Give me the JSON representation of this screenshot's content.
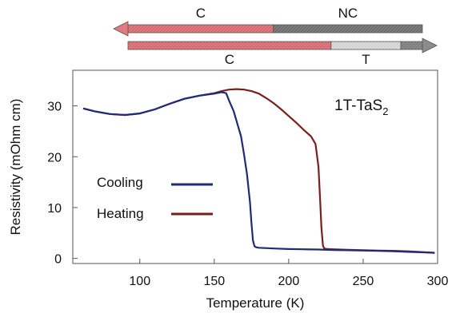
{
  "chart_data": {
    "type": "line",
    "title": "1T-TaS",
    "title_subscript": "2",
    "xlabel": "Temperature (K)",
    "ylabel": "Resistivity (mOhm cm)",
    "xlim": [
      55,
      300
    ],
    "ylim": [
      -1,
      37
    ],
    "xticks": [
      100,
      150,
      200,
      250,
      300
    ],
    "yticks": [
      0,
      10,
      20,
      30
    ],
    "grid": false,
    "legend_position": "left",
    "series": [
      {
        "name": "Cooling",
        "color": "#1f2a78",
        "x": [
          62,
          70,
          80,
          90,
          100,
          110,
          120,
          130,
          140,
          150,
          155,
          158,
          160,
          163,
          166,
          168,
          170,
          172,
          174,
          175,
          176,
          177,
          178,
          180,
          190,
          200,
          210,
          220,
          230,
          240,
          250,
          260,
          270,
          280,
          290,
          298
        ],
        "y": [
          29.5,
          28.9,
          28.4,
          28.2,
          28.5,
          29.3,
          30.4,
          31.4,
          32.0,
          32.4,
          32.7,
          32.5,
          31.0,
          29.0,
          26.0,
          24.0,
          20.5,
          16.5,
          11.0,
          7.0,
          3.5,
          2.4,
          2.2,
          2.1,
          1.95,
          1.85,
          1.8,
          1.75,
          1.65,
          1.6,
          1.55,
          1.5,
          1.4,
          1.3,
          1.2,
          1.1
        ]
      },
      {
        "name": "Heating",
        "color": "#7a1f1f",
        "x": [
          62,
          70,
          80,
          90,
          100,
          110,
          120,
          130,
          140,
          150,
          155,
          160,
          165,
          170,
          175,
          180,
          185,
          190,
          195,
          200,
          205,
          210,
          215,
          218,
          220,
          221,
          222,
          223,
          224,
          226,
          230,
          240,
          250,
          260,
          270,
          280,
          290,
          298
        ],
        "y": [
          29.5,
          28.9,
          28.4,
          28.2,
          28.5,
          29.3,
          30.4,
          31.4,
          32.0,
          32.5,
          32.9,
          33.2,
          33.3,
          33.2,
          32.9,
          32.4,
          31.5,
          30.5,
          29.3,
          28.0,
          26.7,
          25.3,
          24.0,
          22.5,
          18.0,
          12.0,
          6.0,
          2.5,
          1.9,
          1.85,
          1.8,
          1.7,
          1.6,
          1.55,
          1.5,
          1.4,
          1.25,
          1.1
        ]
      }
    ],
    "phase_arrows": [
      {
        "direction": "left",
        "segments": [
          {
            "label": "C",
            "color": "#e07a80",
            "from": 55,
            "to": 176
          },
          {
            "label": "NC",
            "color": "#7d7d7d",
            "from": 176,
            "to": 300
          }
        ]
      },
      {
        "direction": "right",
        "segments": [
          {
            "label": "C",
            "color": "#e07a80",
            "from": 55,
            "to": 224
          },
          {
            "label": "T",
            "color": "#dcdcdc",
            "from": 224,
            "to": 282
          },
          {
            "label": "",
            "color": "#8c8c8c",
            "from": 282,
            "to": 300
          }
        ]
      }
    ]
  }
}
